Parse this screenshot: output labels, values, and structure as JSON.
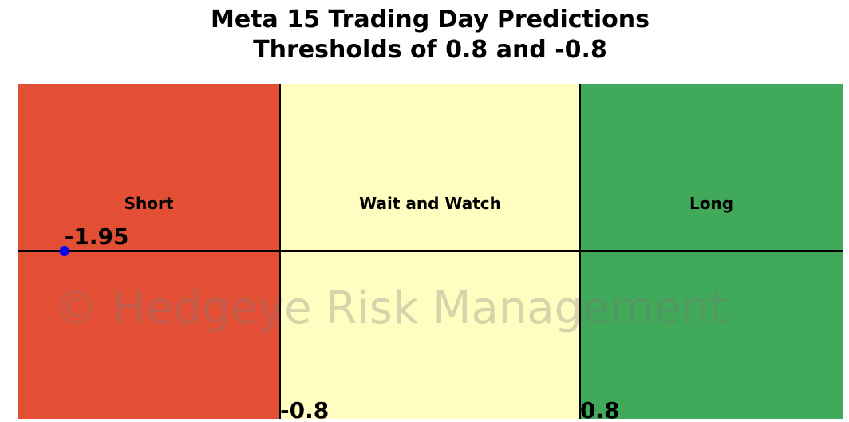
{
  "chart_data": {
    "type": "zones",
    "title": "Meta 15 Trading Day Predictions",
    "subtitle": "Thresholds of 0.8 and -0.8",
    "xlim": [
      -2.2,
      2.2
    ],
    "thresholds": [
      -0.8,
      0.8
    ],
    "zones": [
      {
        "name": "Short",
        "color": "#e34f35"
      },
      {
        "name": "Wait and Watch",
        "color": "#fffdc0"
      },
      {
        "name": "Long",
        "color": "#40a95a"
      }
    ],
    "point": {
      "value": -1.95,
      "color": "#0000ff"
    },
    "watermark": "© Hedgeye Risk Management"
  }
}
